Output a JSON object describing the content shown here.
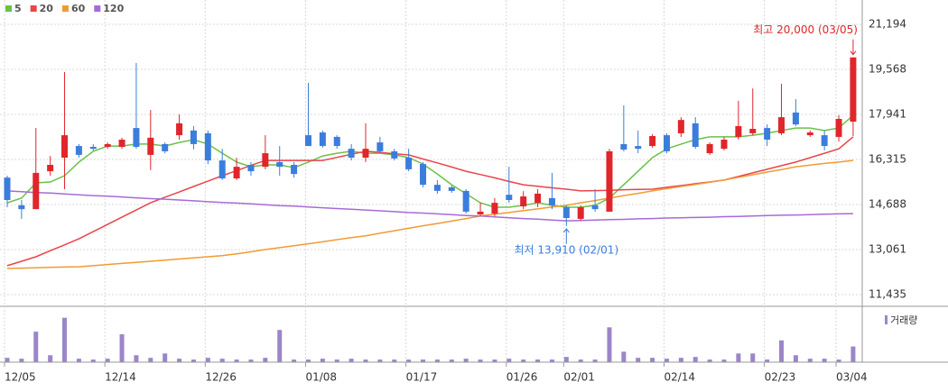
{
  "chart_data": {
    "type": "candlestick",
    "categories": [
      "12/05",
      null,
      null,
      null,
      null,
      null,
      null,
      "12/14",
      null,
      null,
      null,
      null,
      null,
      null,
      "12/26",
      null,
      null,
      null,
      null,
      null,
      null,
      "01/08",
      null,
      null,
      null,
      null,
      null,
      null,
      "01/17",
      null,
      null,
      null,
      null,
      null,
      null,
      "01/26",
      null,
      null,
      null,
      "02/01",
      null,
      null,
      null,
      null,
      null,
      null,
      "02/14",
      null,
      null,
      null,
      null,
      null,
      null,
      "02/23",
      null,
      null,
      null,
      null,
      "03/04",
      null
    ],
    "open": [
      15660,
      14660,
      14520,
      15890,
      16380,
      16800,
      16770,
      16770,
      16770,
      17450,
      16480,
      16870,
      17190,
      17360,
      17260,
      16280,
      15630,
      16120,
      16050,
      16220,
      16120,
      17190,
      17290,
      17130,
      16700,
      16380,
      16930,
      16610,
      16380,
      16150,
      15400,
      15310,
      15180,
      14330,
      14360,
      15040,
      14620,
      14750,
      14920,
      14590,
      14170,
      14660,
      14430,
      16870,
      16800,
      16800,
      17190,
      17260,
      17620,
      16540,
      16700,
      17130,
      17260,
      17450,
      17260,
      18010,
      17190,
      17190,
      17130,
      17680
    ],
    "high": [
      15730,
      14850,
      17450,
      16440,
      19470,
      16870,
      16870,
      16930,
      17100,
      19800,
      18100,
      16930,
      17940,
      17520,
      17360,
      16700,
      16380,
      16220,
      17190,
      16800,
      16220,
      19080,
      17360,
      17190,
      16870,
      17620,
      17130,
      16700,
      16700,
      16220,
      15570,
      15370,
      15240,
      14750,
      14920,
      16050,
      15170,
      15240,
      15830,
      14660,
      14660,
      15240,
      16700,
      18270,
      17360,
      17230,
      17260,
      17840,
      17840,
      16930,
      17130,
      18430,
      18880,
      17580,
      19050,
      18490,
      17360,
      17360,
      17910,
      20000
    ],
    "low": [
      14590,
      14170,
      14520,
      15730,
      15240,
      16380,
      16640,
      16700,
      16700,
      16700,
      15930,
      16540,
      17030,
      16680,
      16150,
      15570,
      15570,
      15730,
      15960,
      15730,
      15660,
      16800,
      16740,
      16700,
      16280,
      16220,
      16540,
      16280,
      15890,
      15310,
      15080,
      15110,
      14360,
      14270,
      14270,
      14750,
      14520,
      14590,
      14520,
      13910,
      14100,
      14430,
      14430,
      16610,
      16540,
      16740,
      16540,
      17130,
      16700,
      16480,
      16640,
      17030,
      17190,
      16800,
      17190,
      17520,
      17130,
      16640,
      16960,
      17160
    ],
    "close": [
      14850,
      14520,
      15830,
      16120,
      17190,
      16480,
      16700,
      16870,
      17030,
      16770,
      17100,
      16610,
      17620,
      16870,
      16280,
      15630,
      16050,
      15890,
      16540,
      16050,
      15790,
      16800,
      16800,
      16800,
      16380,
      16700,
      16610,
      16350,
      15960,
      15400,
      15180,
      15180,
      14430,
      14430,
      14750,
      14850,
      14980,
      15080,
      14660,
      14200,
      14590,
      14520,
      16610,
      16670,
      16700,
      17160,
      16610,
      17740,
      16770,
      16870,
      17030,
      17520,
      17420,
      17030,
      17840,
      17580,
      17290,
      16800,
      17780,
      20000
    ],
    "up_color": "#e0262b",
    "down_color": "#3b7ddd",
    "moving_averages": [
      {
        "name": "5",
        "color": "#6cc04a",
        "values": [
          14750,
          14920,
          15470,
          15500,
          15730,
          16220,
          16610,
          16800,
          16800,
          16870,
          16870,
          16800,
          16930,
          17030,
          16870,
          16540,
          16220,
          16050,
          16120,
          16120,
          16020,
          16220,
          16440,
          16540,
          16610,
          16540,
          16540,
          16480,
          16380,
          16150,
          15790,
          15400,
          15080,
          14750,
          14590,
          14590,
          14660,
          14750,
          14660,
          14590,
          14590,
          14660,
          14920,
          15400,
          15890,
          16380,
          16700,
          16870,
          17030,
          17130,
          17130,
          17130,
          17190,
          17260,
          17360,
          17450,
          17450,
          17360,
          17450,
          17910
        ]
      },
      {
        "name": "20",
        "color": "#e8454a",
        "values": [
          12480,
          12640,
          12800,
          13020,
          13230,
          13450,
          13710,
          13970,
          14230,
          14490,
          14750,
          14950,
          15140,
          15340,
          15530,
          15730,
          15910,
          16100,
          16280,
          16280,
          16280,
          16280,
          16280,
          16390,
          16500,
          16610,
          16570,
          16520,
          16480,
          16330,
          16190,
          16040,
          15890,
          15770,
          15650,
          15520,
          15400,
          15350,
          15290,
          15240,
          15180,
          15190,
          15200,
          15220,
          15230,
          15240,
          15310,
          15370,
          15440,
          15500,
          15570,
          15700,
          15830,
          15960,
          16090,
          16220,
          16380,
          16540,
          16700,
          17130
        ]
      },
      {
        "name": "60",
        "color": "#f29a33",
        "values": [
          12380,
          12390,
          12400,
          12420,
          12430,
          12440,
          12480,
          12520,
          12560,
          12600,
          12640,
          12680,
          12720,
          12760,
          12800,
          12840,
          12910,
          12980,
          13060,
          13130,
          13200,
          13270,
          13340,
          13420,
          13490,
          13560,
          13650,
          13740,
          13830,
          13920,
          14000,
          14090,
          14180,
          14270,
          14340,
          14400,
          14470,
          14530,
          14600,
          14660,
          14750,
          14830,
          14920,
          15010,
          15090,
          15180,
          15260,
          15340,
          15410,
          15490,
          15570,
          15670,
          15760,
          15860,
          15950,
          16050,
          16110,
          16170,
          16220,
          16280
        ]
      },
      {
        "name": "120",
        "color": "#a86ad8",
        "values": [
          15180,
          15150,
          15120,
          15100,
          15070,
          15040,
          15010,
          14990,
          14960,
          14930,
          14900,
          14880,
          14850,
          14820,
          14790,
          14760,
          14740,
          14710,
          14680,
          14650,
          14630,
          14600,
          14570,
          14540,
          14520,
          14490,
          14460,
          14430,
          14400,
          14380,
          14350,
          14320,
          14290,
          14270,
          14240,
          14210,
          14180,
          14160,
          14130,
          14100,
          14110,
          14130,
          14140,
          14150,
          14170,
          14180,
          14200,
          14210,
          14220,
          14230,
          14250,
          14260,
          14270,
          14290,
          14300,
          14310,
          14320,
          14340,
          14350,
          14360
        ]
      }
    ],
    "ylim": [
      11077,
      21357
    ],
    "yticks": [
      {
        "value": 11435,
        "label": "11,435"
      },
      {
        "value": 13061,
        "label": "13,061"
      },
      {
        "value": 14688,
        "label": "14,688"
      },
      {
        "value": 16315,
        "label": "16,315"
      },
      {
        "value": 17941,
        "label": "17,941"
      },
      {
        "value": 19568,
        "label": "19,568"
      },
      {
        "value": 21194,
        "label": "21,194"
      }
    ],
    "grid": true,
    "volume": {
      "name": "거래량",
      "color": "#9b86c8",
      "ylim": [
        0,
        60
      ],
      "values": [
        5,
        4,
        35,
        8,
        51,
        4,
        3,
        4,
        32,
        8,
        5,
        10,
        4,
        3,
        5,
        4,
        3,
        3,
        5,
        37,
        3,
        3,
        4,
        3,
        4,
        3,
        3,
        3,
        3,
        3,
        3,
        3,
        4,
        3,
        3,
        4,
        3,
        3,
        3,
        6,
        3,
        3,
        40,
        12,
        5,
        5,
        4,
        5,
        6,
        3,
        3,
        10,
        10,
        3,
        25,
        8,
        4,
        4,
        3,
        18
      ]
    },
    "annotations": {
      "high": "최고 20,000 (03/05)",
      "low": "최저 13,910 (02/01)"
    }
  }
}
